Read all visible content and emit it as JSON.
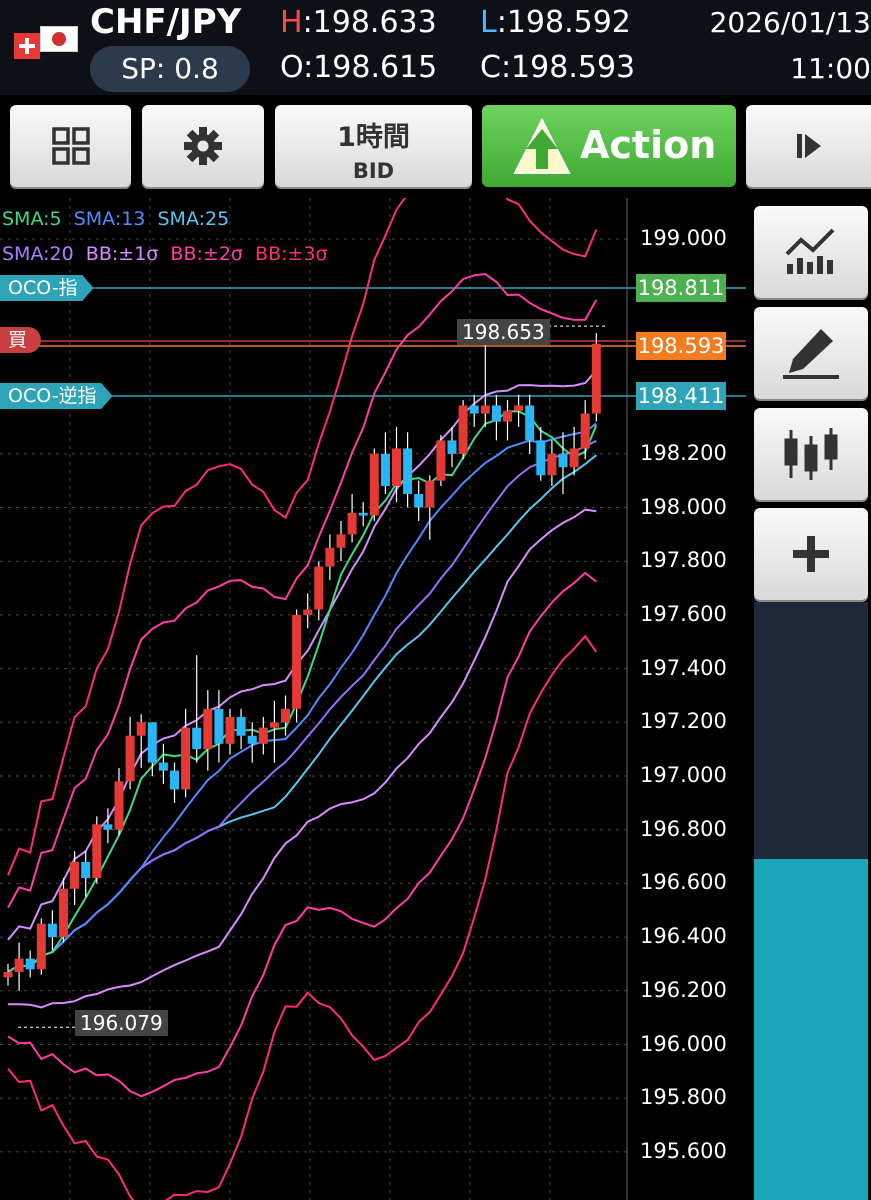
{
  "header": {
    "pair": "CHF/JPY",
    "spread": "SP: 0.8",
    "high_key": "H",
    "high_val": ":198.633",
    "low_key": "L",
    "low_val": ":198.592",
    "open": "O:198.615",
    "close": "C:198.593",
    "date": "2026/01/13",
    "time": "11:00"
  },
  "toolbar": {
    "timeframe": "1時間",
    "price_type": "BID",
    "action_label": "Action"
  },
  "legend": {
    "row1": [
      "SMA:5",
      "SMA:13",
      "SMA:25"
    ],
    "row2": [
      "SMA:20",
      "BB:±1σ",
      "BB:±2σ",
      "BB:±3σ"
    ]
  },
  "orders": {
    "oco_limit_label": "OCO-指",
    "oco_limit_price": "198.811",
    "buy_label": "買",
    "current_price": "198.593",
    "oco_stop_label": "OCO-逆指",
    "oco_stop_price": "198.411"
  },
  "chart_data": {
    "type": "candlestick",
    "y_ticks": [
      "199.000",
      "198.200",
      "198.000",
      "197.800",
      "197.600",
      "197.400",
      "197.200",
      "197.000",
      "196.800",
      "196.600",
      "196.400",
      "196.200",
      "196.000",
      "195.800",
      "195.600"
    ],
    "ylim": [
      195.55,
      199.1
    ],
    "high_label": "198.653",
    "low_label": "196.079",
    "candles": [
      [
        196.25,
        196.3,
        196.22,
        196.27
      ],
      [
        196.27,
        196.38,
        196.2,
        196.32
      ],
      [
        196.32,
        196.35,
        196.25,
        196.28
      ],
      [
        196.28,
        196.47,
        196.26,
        196.45
      ],
      [
        196.45,
        196.5,
        196.35,
        196.4
      ],
      [
        196.4,
        196.62,
        196.38,
        196.58
      ],
      [
        196.58,
        196.72,
        196.52,
        196.68
      ],
      [
        196.68,
        196.72,
        196.55,
        196.62
      ],
      [
        196.62,
        196.85,
        196.6,
        196.82
      ],
      [
        196.82,
        196.88,
        196.75,
        196.8
      ],
      [
        196.8,
        197.03,
        196.78,
        196.98
      ],
      [
        196.98,
        197.22,
        196.95,
        197.15
      ],
      [
        197.15,
        197.23,
        197.03,
        197.2
      ],
      [
        197.2,
        197.18,
        197.0,
        197.05
      ],
      [
        197.05,
        197.12,
        196.97,
        197.02
      ],
      [
        197.02,
        197.05,
        196.9,
        196.95
      ],
      [
        196.95,
        197.25,
        196.92,
        197.18
      ],
      [
        197.18,
        197.45,
        197.05,
        197.1
      ],
      [
        197.1,
        197.32,
        197.02,
        197.25
      ],
      [
        197.25,
        197.32,
        197.05,
        197.12
      ],
      [
        197.12,
        197.25,
        197.08,
        197.22
      ],
      [
        197.22,
        197.25,
        197.1,
        197.15
      ],
      [
        197.15,
        197.2,
        197.05,
        197.12
      ],
      [
        197.12,
        197.22,
        197.08,
        197.18
      ],
      [
        197.18,
        197.28,
        197.05,
        197.2
      ],
      [
        197.2,
        197.3,
        197.15,
        197.25
      ],
      [
        197.25,
        197.62,
        197.2,
        197.6
      ],
      [
        197.6,
        197.68,
        197.55,
        197.62
      ],
      [
        197.62,
        197.8,
        197.58,
        197.78
      ],
      [
        197.78,
        197.9,
        197.73,
        197.85
      ],
      [
        197.85,
        197.95,
        197.8,
        197.9
      ],
      [
        197.9,
        198.05,
        197.87,
        197.98
      ],
      [
        197.98,
        198.02,
        197.93,
        197.97
      ],
      [
        197.97,
        198.22,
        197.95,
        198.2
      ],
      [
        198.2,
        198.28,
        198.05,
        198.08
      ],
      [
        198.08,
        198.3,
        198.02,
        198.22
      ],
      [
        198.22,
        198.28,
        198.0,
        198.05
      ],
      [
        198.05,
        198.1,
        197.95,
        198.0
      ],
      [
        198.0,
        198.12,
        197.88,
        198.1
      ],
      [
        198.1,
        198.27,
        198.08,
        198.25
      ],
      [
        198.25,
        198.3,
        198.15,
        198.2
      ],
      [
        198.2,
        198.4,
        198.18,
        198.38
      ],
      [
        198.38,
        198.42,
        198.3,
        198.35
      ],
      [
        198.35,
        198.65,
        198.3,
        198.38
      ],
      [
        198.38,
        198.42,
        198.25,
        198.32
      ],
      [
        198.32,
        198.4,
        198.25,
        198.36
      ],
      [
        198.36,
        198.42,
        198.3,
        198.38
      ],
      [
        198.38,
        198.42,
        198.2,
        198.25
      ],
      [
        198.25,
        198.3,
        198.1,
        198.12
      ],
      [
        198.12,
        198.25,
        198.08,
        198.2
      ],
      [
        198.2,
        198.28,
        198.05,
        198.15
      ],
      [
        198.15,
        198.3,
        198.12,
        198.22
      ],
      [
        198.22,
        198.4,
        198.18,
        198.35
      ],
      [
        198.35,
        198.65,
        198.32,
        198.61
      ]
    ]
  },
  "side": {
    "gauge_fill_percent": 57
  },
  "colors": {
    "up": "#e53935",
    "down": "#29b6f6",
    "sma5": "#3ddc84",
    "sma13": "#4f8cff",
    "sma25": "#55c8f0",
    "sma20": "#9c6cff",
    "bb1": "#d98cff",
    "bb2": "#ff3ea5",
    "bb3": "#ff2e6e",
    "limit": "#2ea4b8",
    "stop": "#2ea4b8",
    "buy": "#c94040",
    "current": "#f47b20",
    "limit_tag": "#4caf50"
  }
}
